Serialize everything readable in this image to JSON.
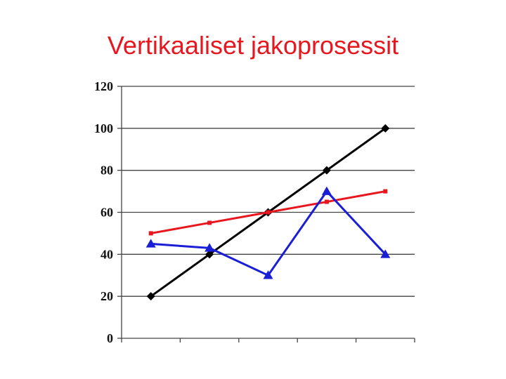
{
  "slide": {
    "title": "Vertikaaliset jakoprosessit",
    "title_color": "#e8171f"
  },
  "chart_data": {
    "type": "line",
    "title": "Vertikaaliset jakoprosessit",
    "xlabel": "",
    "ylabel": "",
    "ylim": [
      0,
      120
    ],
    "yticks": [
      0,
      20,
      40,
      60,
      80,
      100,
      120
    ],
    "grid": true,
    "legend": "none",
    "x": [
      1,
      2,
      3,
      4,
      5
    ],
    "series": [
      {
        "values": [
          20,
          40,
          60,
          80,
          100
        ],
        "color": "#000000",
        "marker": "diamond"
      },
      {
        "values": [
          50,
          55,
          60,
          65,
          70
        ],
        "color": "#e8171f",
        "marker": "square"
      },
      {
        "values": [
          45,
          43,
          30,
          70,
          40
        ],
        "color": "#1a1fd6",
        "marker": "triangle"
      }
    ]
  }
}
